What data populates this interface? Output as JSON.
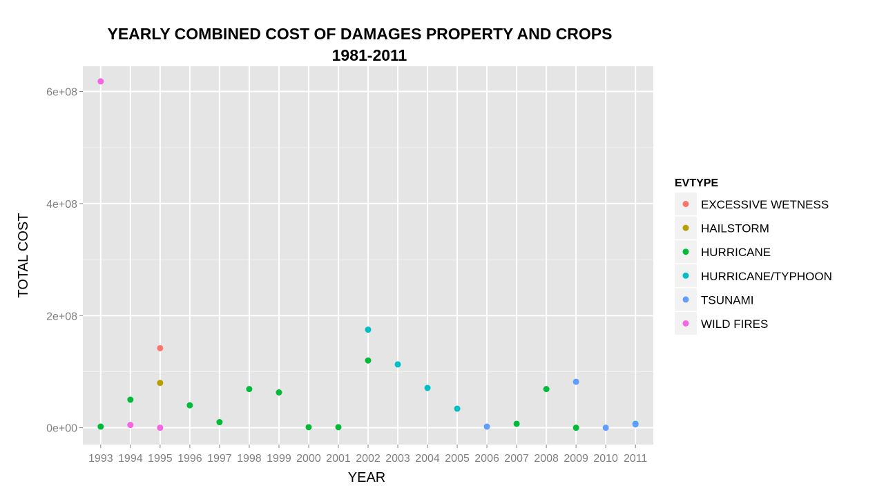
{
  "chart_data": {
    "type": "scatter",
    "title_line1": "YEARLY COMBINED COST OF DAMAGES PROPERTY AND CROPS",
    "title_line2": "1981-2011",
    "xlabel": "YEAR",
    "ylabel": "TOTAL COST",
    "categories": [
      "1993",
      "1994",
      "1995",
      "1996",
      "1997",
      "1998",
      "1999",
      "2000",
      "2001",
      "2002",
      "2003",
      "2004",
      "2005",
      "2006",
      "2007",
      "2008",
      "2009",
      "2010",
      "2011"
    ],
    "y_ticks": [
      {
        "value": 0,
        "label": "0e+00"
      },
      {
        "value": 200000000,
        "label": "2e+08"
      },
      {
        "value": 400000000,
        "label": "4e+08"
      },
      {
        "value": 600000000,
        "label": "6e+08"
      }
    ],
    "ylim": [
      -30000000,
      645000000
    ],
    "grid": true,
    "legend": {
      "title": "EVTYPE",
      "placement": "right"
    },
    "series": [
      {
        "name": "EXCESSIVE WETNESS",
        "color": "#F8766D",
        "points": [
          {
            "x": "1995",
            "y": 142000000
          }
        ]
      },
      {
        "name": "HAILSTORM",
        "color": "#B79F00",
        "points": [
          {
            "x": "1995",
            "y": 80000000
          }
        ]
      },
      {
        "name": "HURRICANE",
        "color": "#00BA38",
        "points": [
          {
            "x": "1993",
            "y": 2000000
          },
          {
            "x": "1994",
            "y": 50000000
          },
          {
            "x": "1996",
            "y": 40000000
          },
          {
            "x": "1997",
            "y": 10000000
          },
          {
            "x": "1998",
            "y": 69000000
          },
          {
            "x": "1999",
            "y": 63000000
          },
          {
            "x": "2000",
            "y": 1000000
          },
          {
            "x": "2001",
            "y": 1000000
          },
          {
            "x": "2002",
            "y": 120000000
          },
          {
            "x": "2007",
            "y": 7000000
          },
          {
            "x": "2008",
            "y": 69000000
          },
          {
            "x": "2009",
            "y": 0
          }
        ]
      },
      {
        "name": "HURRICANE/TYPHOON",
        "color": "#00BFC4",
        "points": [
          {
            "x": "2002",
            "y": 175000000
          },
          {
            "x": "2003",
            "y": 113000000
          },
          {
            "x": "2004",
            "y": 71000000
          },
          {
            "x": "2005",
            "y": 34000000
          },
          {
            "x": "2011",
            "y": 7000000
          }
        ]
      },
      {
        "name": "TSUNAMI",
        "color": "#619CFF",
        "points": [
          {
            "x": "2006",
            "y": 2000000
          },
          {
            "x": "2009",
            "y": 82000000
          },
          {
            "x": "2010",
            "y": 0
          },
          {
            "x": "2011",
            "y": 6000000
          }
        ]
      },
      {
        "name": "WILD FIRES",
        "color": "#F564E3",
        "points": [
          {
            "x": "1993",
            "y": 618000000
          },
          {
            "x": "1994",
            "y": 5000000
          },
          {
            "x": "1995",
            "y": 0
          }
        ]
      }
    ]
  }
}
